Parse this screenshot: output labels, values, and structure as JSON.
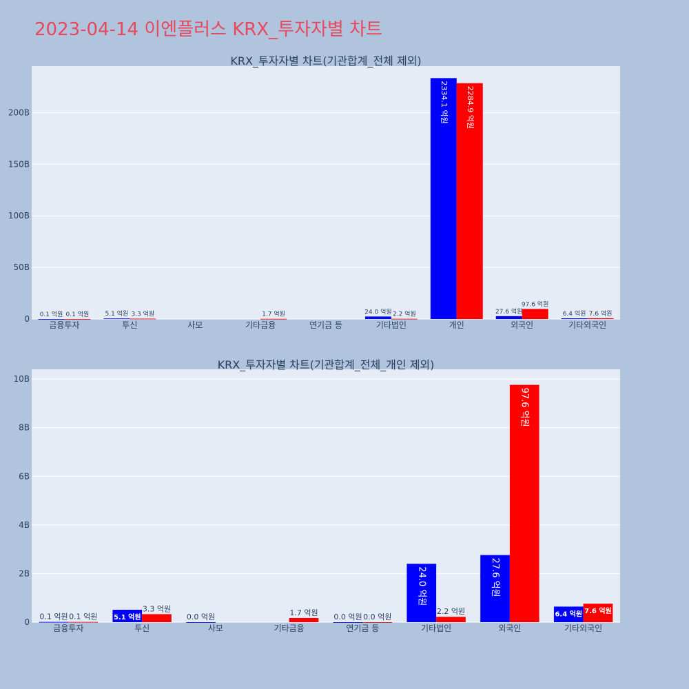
{
  "page_title": "2023-04-14 이엔플러스 KRX_투자자별 차트",
  "colors": {
    "buy": "#0000ff",
    "sell": "#ff0000",
    "plot_bg": "#e5ecf6",
    "page_bg": "#b0c4de",
    "title": "#e8485c"
  },
  "chart_data": [
    {
      "type": "bar",
      "title": "KRX_투자자별 차트(기관합계_전체 제외)",
      "categories": [
        "금융투자",
        "투신",
        "사모",
        "기타금융",
        "연기금 등",
        "기타법인",
        "개인",
        "외국인",
        "기타외국인"
      ],
      "series": [
        {
          "values": [
            10000000,
            510000000,
            null,
            null,
            null,
            2400000000,
            233410000000,
            2760000000,
            640000000
          ],
          "labels": [
            "0.1 억원",
            "5.1 억원",
            "",
            "",
            "",
            "24.0 억원",
            "2334.1 억원",
            "27.6 억원",
            "6.4 억원"
          ]
        },
        {
          "values": [
            10000000,
            330000000,
            null,
            170000000,
            null,
            220000000,
            228490000000,
            9760000000,
            760000000
          ],
          "labels": [
            "0.1 억원",
            "3.3 억원",
            "",
            "1.7 억원",
            "",
            "2.2 억원",
            "2284.9 억원",
            "97.6 억원",
            "7.6 억원"
          ]
        }
      ],
      "yticks": [
        0,
        50000000000,
        100000000000,
        150000000000,
        200000000000
      ],
      "ytick_labels": [
        "0",
        "50B",
        "100B",
        "150B",
        "200B"
      ],
      "ylim": [
        0,
        245000000000
      ],
      "grid": true
    },
    {
      "type": "bar",
      "title": "KRX_투자자별 차트(기관합계_전체_개인 제외)",
      "categories": [
        "금융투자",
        "투신",
        "사모",
        "기타금융",
        "연기금 등",
        "기타법인",
        "외국인",
        "기타외국인"
      ],
      "series": [
        {
          "values": [
            10000000,
            510000000,
            0,
            null,
            0,
            2400000000,
            2760000000,
            640000000
          ],
          "labels": [
            "0.1 억원",
            "5.1 억원",
            "0.0 억원",
            "",
            "0.0 억원",
            "24.0 억원",
            "27.6 억원",
            "6.4 억원"
          ]
        },
        {
          "values": [
            10000000,
            330000000,
            null,
            170000000,
            0,
            220000000,
            9760000000,
            760000000
          ],
          "labels": [
            "0.1 억원",
            "3.3 억원",
            "",
            "1.7 억원",
            "0.0 억원",
            "2.2 억원",
            "97.6 억원",
            "7.6 억원"
          ]
        }
      ],
      "yticks": [
        0,
        2000000000,
        4000000000,
        6000000000,
        8000000000,
        10000000000
      ],
      "ytick_labels": [
        "0",
        "2B",
        "4B",
        "6B",
        "8B",
        "10B"
      ],
      "ylim": [
        0,
        10400000000
      ],
      "grid": true
    }
  ]
}
